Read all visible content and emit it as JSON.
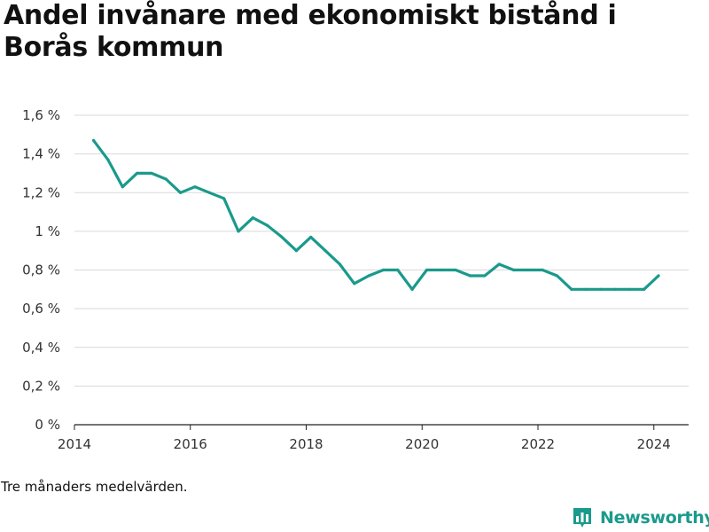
{
  "chart_data": {
    "type": "line",
    "title": "Andel invånare med ekonomiskt bistånd i Borås kommun",
    "note": "Tre månaders medelvärden.",
    "brand": "Newsworthy",
    "xlabel": "",
    "ylabel": "",
    "xlim": [
      2014,
      2024.6
    ],
    "ylim": [
      0,
      1.6
    ],
    "x_ticks": [
      {
        "value": 2014,
        "label": "2014"
      },
      {
        "value": 2016,
        "label": "2016"
      },
      {
        "value": 2018,
        "label": "2018"
      },
      {
        "value": 2020,
        "label": "2020"
      },
      {
        "value": 2022,
        "label": "2022"
      },
      {
        "value": 2024,
        "label": "2024"
      }
    ],
    "y_ticks": [
      {
        "value": 0,
        "label": "0 %"
      },
      {
        "value": 0.2,
        "label": "0,2 %"
      },
      {
        "value": 0.4,
        "label": "0,4 %"
      },
      {
        "value": 0.6,
        "label": "0,6 %"
      },
      {
        "value": 0.8,
        "label": "0,8 %"
      },
      {
        "value": 1.0,
        "label": "1 %"
      },
      {
        "value": 1.2,
        "label": "1,2 %"
      },
      {
        "value": 1.4,
        "label": "1,4 %"
      },
      {
        "value": 1.6,
        "label": "1,6 %"
      }
    ],
    "grid": true,
    "series": [
      {
        "color": "#1a9a8c",
        "x": [
          2014.33,
          2014.58,
          2014.83,
          2015.08,
          2015.33,
          2015.58,
          2015.83,
          2016.08,
          2016.33,
          2016.58,
          2016.83,
          2017.08,
          2017.33,
          2017.58,
          2017.83,
          2018.08,
          2018.33,
          2018.58,
          2018.83,
          2019.08,
          2019.33,
          2019.58,
          2019.83,
          2020.08,
          2020.33,
          2020.58,
          2020.83,
          2021.08,
          2021.33,
          2021.58,
          2021.83,
          2022.08,
          2022.33,
          2022.58,
          2022.83,
          2023.08,
          2023.33,
          2023.58,
          2023.83,
          2024.08
        ],
        "values": [
          1.47,
          1.37,
          1.23,
          1.3,
          1.3,
          1.27,
          1.2,
          1.23,
          1.2,
          1.17,
          1.0,
          1.07,
          1.03,
          0.97,
          0.9,
          0.97,
          0.9,
          0.83,
          0.73,
          0.77,
          0.8,
          0.8,
          0.7,
          0.8,
          0.8,
          0.8,
          0.77,
          0.77,
          0.83,
          0.8,
          0.8,
          0.8,
          0.77,
          0.7,
          0.7,
          0.7,
          0.7,
          0.7,
          0.7,
          0.77
        ]
      }
    ]
  }
}
